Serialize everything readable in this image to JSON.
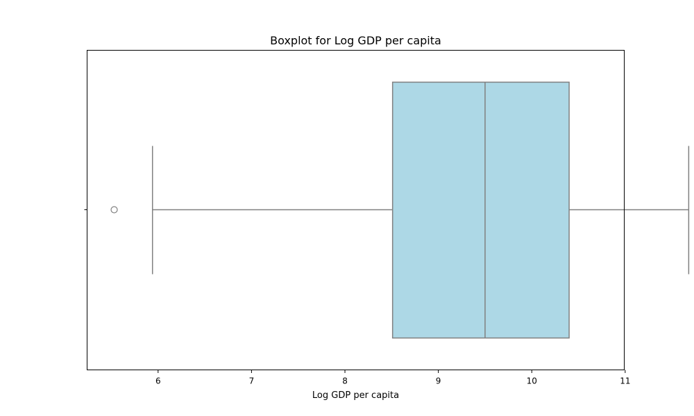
{
  "chart_data": {
    "type": "boxplot",
    "title": "Boxplot for Log GDP per capita",
    "xlabel": "Log GDP per capita",
    "ylabel": "",
    "orientation": "horizontal",
    "xlim": [
      5.24,
      10.99
    ],
    "xticks": [
      6,
      7,
      8,
      9,
      10,
      11
    ],
    "xtick_labels": [
      "6",
      "7",
      "8",
      "9",
      "10",
      "11"
    ],
    "grid": false,
    "box": {
      "whisker_low": 5.94,
      "q1": 8.51,
      "median": 9.5,
      "q3": 10.4,
      "whisker_high": 11.68
    },
    "outliers": [
      5.53
    ],
    "colors": {
      "box_fill": "#add8e6",
      "line": "#808080",
      "frame": "#000000"
    }
  }
}
